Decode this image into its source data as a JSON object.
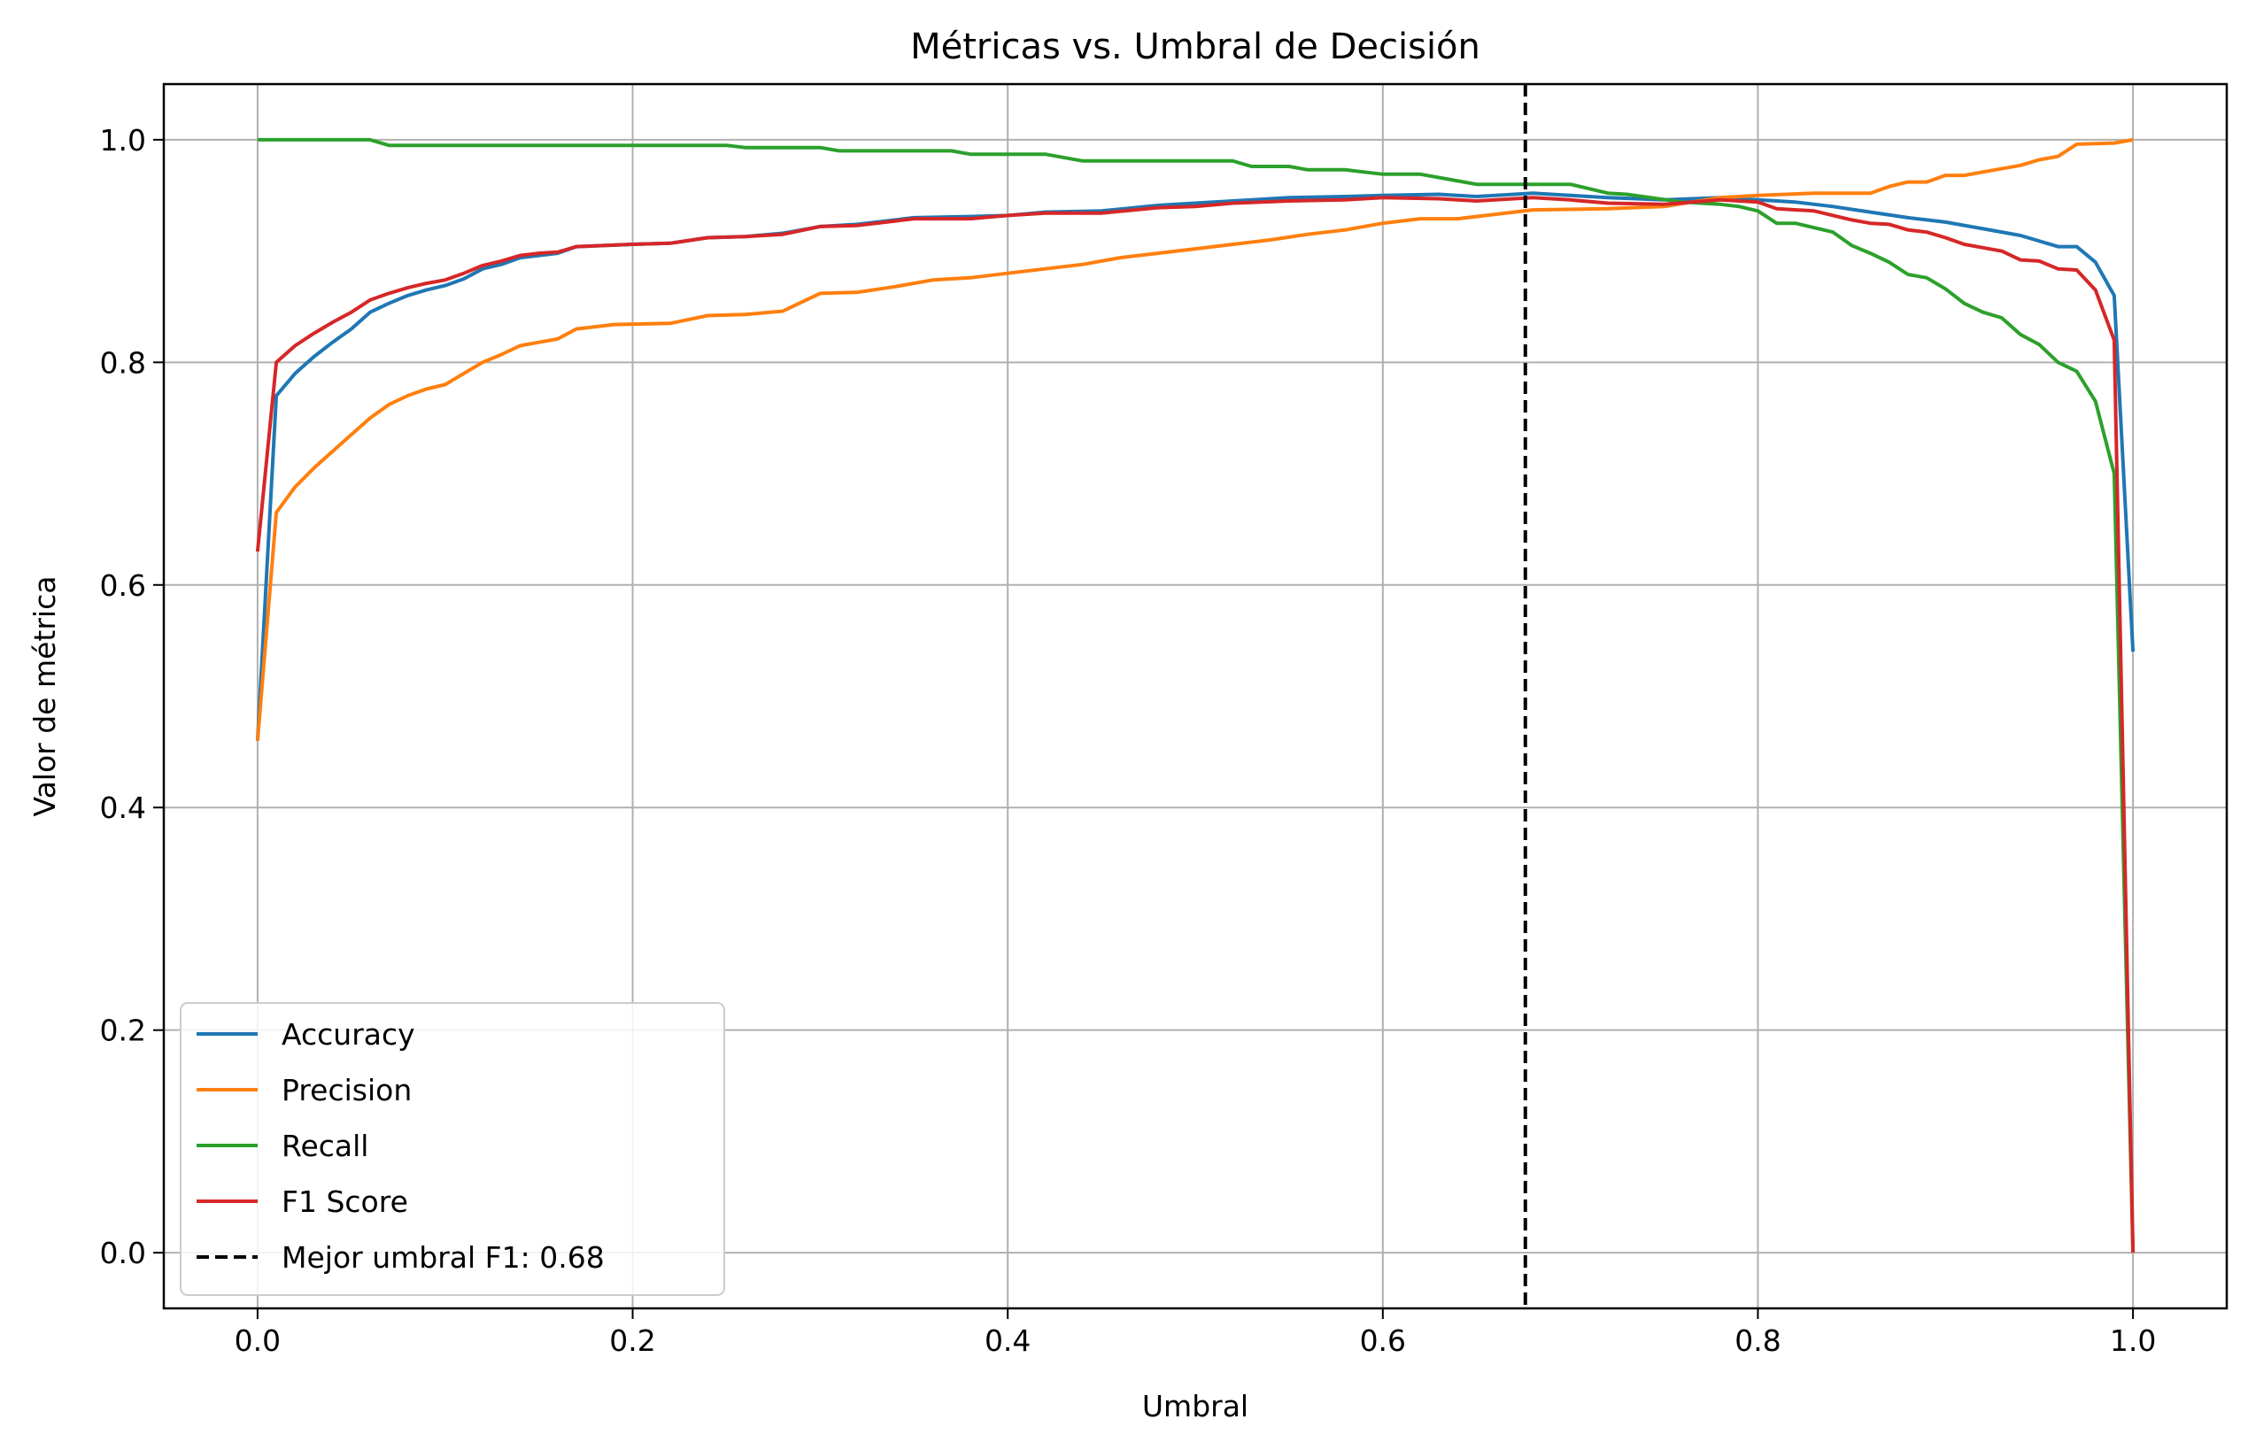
{
  "chart_data": {
    "type": "line",
    "title": "Métricas vs. Umbral de Decisión",
    "xlabel": "Umbral",
    "ylabel": "Valor de métrica",
    "xlim": [
      -0.05,
      1.05
    ],
    "ylim": [
      -0.05,
      1.05
    ],
    "xticks": [
      0.0,
      0.2,
      0.4,
      0.6,
      0.8,
      1.0
    ],
    "xtick_labels": [
      "0.0",
      "0.2",
      "0.4",
      "0.6",
      "0.8",
      "1.0"
    ],
    "yticks": [
      0.0,
      0.2,
      0.4,
      0.6,
      0.8,
      1.0
    ],
    "ytick_labels": [
      "0.0",
      "0.2",
      "0.4",
      "0.6",
      "0.8",
      "1.0"
    ],
    "grid": true,
    "legend_position": "lower-left",
    "series": [
      {
        "name": "Accuracy",
        "color": "#1f77b4",
        "points": [
          [
            0.0,
            0.46
          ],
          [
            0.01,
            0.77
          ],
          [
            0.02,
            0.79
          ],
          [
            0.03,
            0.805
          ],
          [
            0.04,
            0.818
          ],
          [
            0.05,
            0.83
          ],
          [
            0.06,
            0.845
          ],
          [
            0.07,
            0.853
          ],
          [
            0.08,
            0.86
          ],
          [
            0.09,
            0.865
          ],
          [
            0.1,
            0.869
          ],
          [
            0.11,
            0.875
          ],
          [
            0.12,
            0.884
          ],
          [
            0.13,
            0.888
          ],
          [
            0.14,
            0.894
          ],
          [
            0.15,
            0.896
          ],
          [
            0.16,
            0.898
          ],
          [
            0.17,
            0.904
          ],
          [
            0.2,
            0.906
          ],
          [
            0.22,
            0.907
          ],
          [
            0.24,
            0.912
          ],
          [
            0.26,
            0.913
          ],
          [
            0.28,
            0.916
          ],
          [
            0.3,
            0.922
          ],
          [
            0.32,
            0.924
          ],
          [
            0.35,
            0.93
          ],
          [
            0.38,
            0.931
          ],
          [
            0.4,
            0.932
          ],
          [
            0.42,
            0.935
          ],
          [
            0.45,
            0.936
          ],
          [
            0.48,
            0.941
          ],
          [
            0.5,
            0.943
          ],
          [
            0.52,
            0.945
          ],
          [
            0.55,
            0.948
          ],
          [
            0.58,
            0.949
          ],
          [
            0.6,
            0.95
          ],
          [
            0.63,
            0.951
          ],
          [
            0.65,
            0.949
          ],
          [
            0.68,
            0.952
          ],
          [
            0.7,
            0.95
          ],
          [
            0.72,
            0.948
          ],
          [
            0.75,
            0.946
          ],
          [
            0.78,
            0.948
          ],
          [
            0.8,
            0.946
          ],
          [
            0.82,
            0.944
          ],
          [
            0.84,
            0.94
          ],
          [
            0.86,
            0.935
          ],
          [
            0.88,
            0.93
          ],
          [
            0.9,
            0.926
          ],
          [
            0.92,
            0.92
          ],
          [
            0.94,
            0.914
          ],
          [
            0.96,
            0.904
          ],
          [
            0.97,
            0.904
          ],
          [
            0.98,
            0.89
          ],
          [
            0.99,
            0.86
          ],
          [
            1.0,
            0.54
          ]
        ]
      },
      {
        "name": "Precision",
        "color": "#ff7f0e",
        "points": [
          [
            0.0,
            0.46
          ],
          [
            0.01,
            0.665
          ],
          [
            0.02,
            0.688
          ],
          [
            0.03,
            0.705
          ],
          [
            0.04,
            0.72
          ],
          [
            0.05,
            0.735
          ],
          [
            0.06,
            0.75
          ],
          [
            0.07,
            0.762
          ],
          [
            0.08,
            0.77
          ],
          [
            0.09,
            0.776
          ],
          [
            0.1,
            0.78
          ],
          [
            0.11,
            0.79
          ],
          [
            0.12,
            0.8
          ],
          [
            0.13,
            0.807
          ],
          [
            0.14,
            0.815
          ],
          [
            0.15,
            0.818
          ],
          [
            0.16,
            0.821
          ],
          [
            0.17,
            0.83
          ],
          [
            0.19,
            0.834
          ],
          [
            0.22,
            0.835
          ],
          [
            0.24,
            0.842
          ],
          [
            0.26,
            0.843
          ],
          [
            0.28,
            0.846
          ],
          [
            0.3,
            0.862
          ],
          [
            0.32,
            0.863
          ],
          [
            0.34,
            0.868
          ],
          [
            0.36,
            0.874
          ],
          [
            0.38,
            0.876
          ],
          [
            0.4,
            0.88
          ],
          [
            0.42,
            0.884
          ],
          [
            0.44,
            0.888
          ],
          [
            0.46,
            0.894
          ],
          [
            0.48,
            0.898
          ],
          [
            0.5,
            0.902
          ],
          [
            0.52,
            0.906
          ],
          [
            0.54,
            0.91
          ],
          [
            0.56,
            0.915
          ],
          [
            0.58,
            0.919
          ],
          [
            0.6,
            0.925
          ],
          [
            0.62,
            0.929
          ],
          [
            0.64,
            0.929
          ],
          [
            0.66,
            0.933
          ],
          [
            0.68,
            0.937
          ],
          [
            0.72,
            0.938
          ],
          [
            0.75,
            0.94
          ],
          [
            0.78,
            0.948
          ],
          [
            0.8,
            0.95
          ],
          [
            0.83,
            0.952
          ],
          [
            0.86,
            0.952
          ],
          [
            0.87,
            0.958
          ],
          [
            0.88,
            0.962
          ],
          [
            0.89,
            0.962
          ],
          [
            0.9,
            0.968
          ],
          [
            0.91,
            0.968
          ],
          [
            0.92,
            0.971
          ],
          [
            0.94,
            0.977
          ],
          [
            0.95,
            0.982
          ],
          [
            0.96,
            0.985
          ],
          [
            0.97,
            0.996
          ],
          [
            0.99,
            0.997
          ],
          [
            1.0,
            1.0
          ]
        ]
      },
      {
        "name": "Recall",
        "color": "#2ca02c",
        "points": [
          [
            0.0,
            1.0
          ],
          [
            0.06,
            1.0
          ],
          [
            0.07,
            0.995
          ],
          [
            0.25,
            0.995
          ],
          [
            0.26,
            0.993
          ],
          [
            0.3,
            0.993
          ],
          [
            0.31,
            0.99
          ],
          [
            0.37,
            0.99
          ],
          [
            0.38,
            0.987
          ],
          [
            0.42,
            0.987
          ],
          [
            0.44,
            0.981
          ],
          [
            0.52,
            0.981
          ],
          [
            0.53,
            0.976
          ],
          [
            0.55,
            0.976
          ],
          [
            0.56,
            0.973
          ],
          [
            0.58,
            0.973
          ],
          [
            0.6,
            0.969
          ],
          [
            0.62,
            0.969
          ],
          [
            0.64,
            0.963
          ],
          [
            0.65,
            0.96
          ],
          [
            0.7,
            0.96
          ],
          [
            0.72,
            0.952
          ],
          [
            0.73,
            0.951
          ],
          [
            0.76,
            0.944
          ],
          [
            0.78,
            0.942
          ],
          [
            0.79,
            0.94
          ],
          [
            0.8,
            0.936
          ],
          [
            0.81,
            0.925
          ],
          [
            0.82,
            0.925
          ],
          [
            0.84,
            0.917
          ],
          [
            0.85,
            0.905
          ],
          [
            0.86,
            0.898
          ],
          [
            0.87,
            0.89
          ],
          [
            0.88,
            0.879
          ],
          [
            0.89,
            0.876
          ],
          [
            0.9,
            0.866
          ],
          [
            0.91,
            0.853
          ],
          [
            0.92,
            0.845
          ],
          [
            0.93,
            0.84
          ],
          [
            0.94,
            0.825
          ],
          [
            0.95,
            0.816
          ],
          [
            0.96,
            0.8
          ],
          [
            0.97,
            0.792
          ],
          [
            0.98,
            0.765
          ],
          [
            0.99,
            0.7
          ],
          [
            1.0,
            0.0
          ]
        ]
      },
      {
        "name": "F1 Score",
        "color": "#d62728",
        "points": [
          [
            0.0,
            0.63
          ],
          [
            0.01,
            0.8
          ],
          [
            0.02,
            0.815
          ],
          [
            0.03,
            0.826
          ],
          [
            0.04,
            0.836
          ],
          [
            0.05,
            0.845
          ],
          [
            0.06,
            0.856
          ],
          [
            0.07,
            0.862
          ],
          [
            0.08,
            0.867
          ],
          [
            0.09,
            0.871
          ],
          [
            0.1,
            0.874
          ],
          [
            0.11,
            0.88
          ],
          [
            0.12,
            0.887
          ],
          [
            0.13,
            0.891
          ],
          [
            0.14,
            0.896
          ],
          [
            0.15,
            0.898
          ],
          [
            0.16,
            0.899
          ],
          [
            0.17,
            0.904
          ],
          [
            0.2,
            0.906
          ],
          [
            0.22,
            0.907
          ],
          [
            0.24,
            0.912
          ],
          [
            0.26,
            0.913
          ],
          [
            0.28,
            0.915
          ],
          [
            0.3,
            0.922
          ],
          [
            0.32,
            0.923
          ],
          [
            0.35,
            0.929
          ],
          [
            0.38,
            0.929
          ],
          [
            0.4,
            0.932
          ],
          [
            0.42,
            0.934
          ],
          [
            0.45,
            0.934
          ],
          [
            0.48,
            0.939
          ],
          [
            0.5,
            0.94
          ],
          [
            0.52,
            0.943
          ],
          [
            0.55,
            0.945
          ],
          [
            0.58,
            0.946
          ],
          [
            0.6,
            0.948
          ],
          [
            0.63,
            0.947
          ],
          [
            0.65,
            0.945
          ],
          [
            0.68,
            0.948
          ],
          [
            0.7,
            0.946
          ],
          [
            0.72,
            0.943
          ],
          [
            0.75,
            0.942
          ],
          [
            0.78,
            0.946
          ],
          [
            0.8,
            0.944
          ],
          [
            0.81,
            0.938
          ],
          [
            0.83,
            0.936
          ],
          [
            0.85,
            0.928
          ],
          [
            0.86,
            0.925
          ],
          [
            0.87,
            0.924
          ],
          [
            0.88,
            0.919
          ],
          [
            0.89,
            0.917
          ],
          [
            0.9,
            0.912
          ],
          [
            0.91,
            0.906
          ],
          [
            0.92,
            0.903
          ],
          [
            0.93,
            0.9
          ],
          [
            0.94,
            0.892
          ],
          [
            0.95,
            0.891
          ],
          [
            0.96,
            0.884
          ],
          [
            0.97,
            0.883
          ],
          [
            0.98,
            0.865
          ],
          [
            0.99,
            0.82
          ],
          [
            1.0,
            0.0
          ]
        ]
      }
    ],
    "vline": {
      "name": "Mejor umbral F1: 0.68",
      "x": 0.676,
      "color": "#000000",
      "style": "dashed"
    }
  }
}
